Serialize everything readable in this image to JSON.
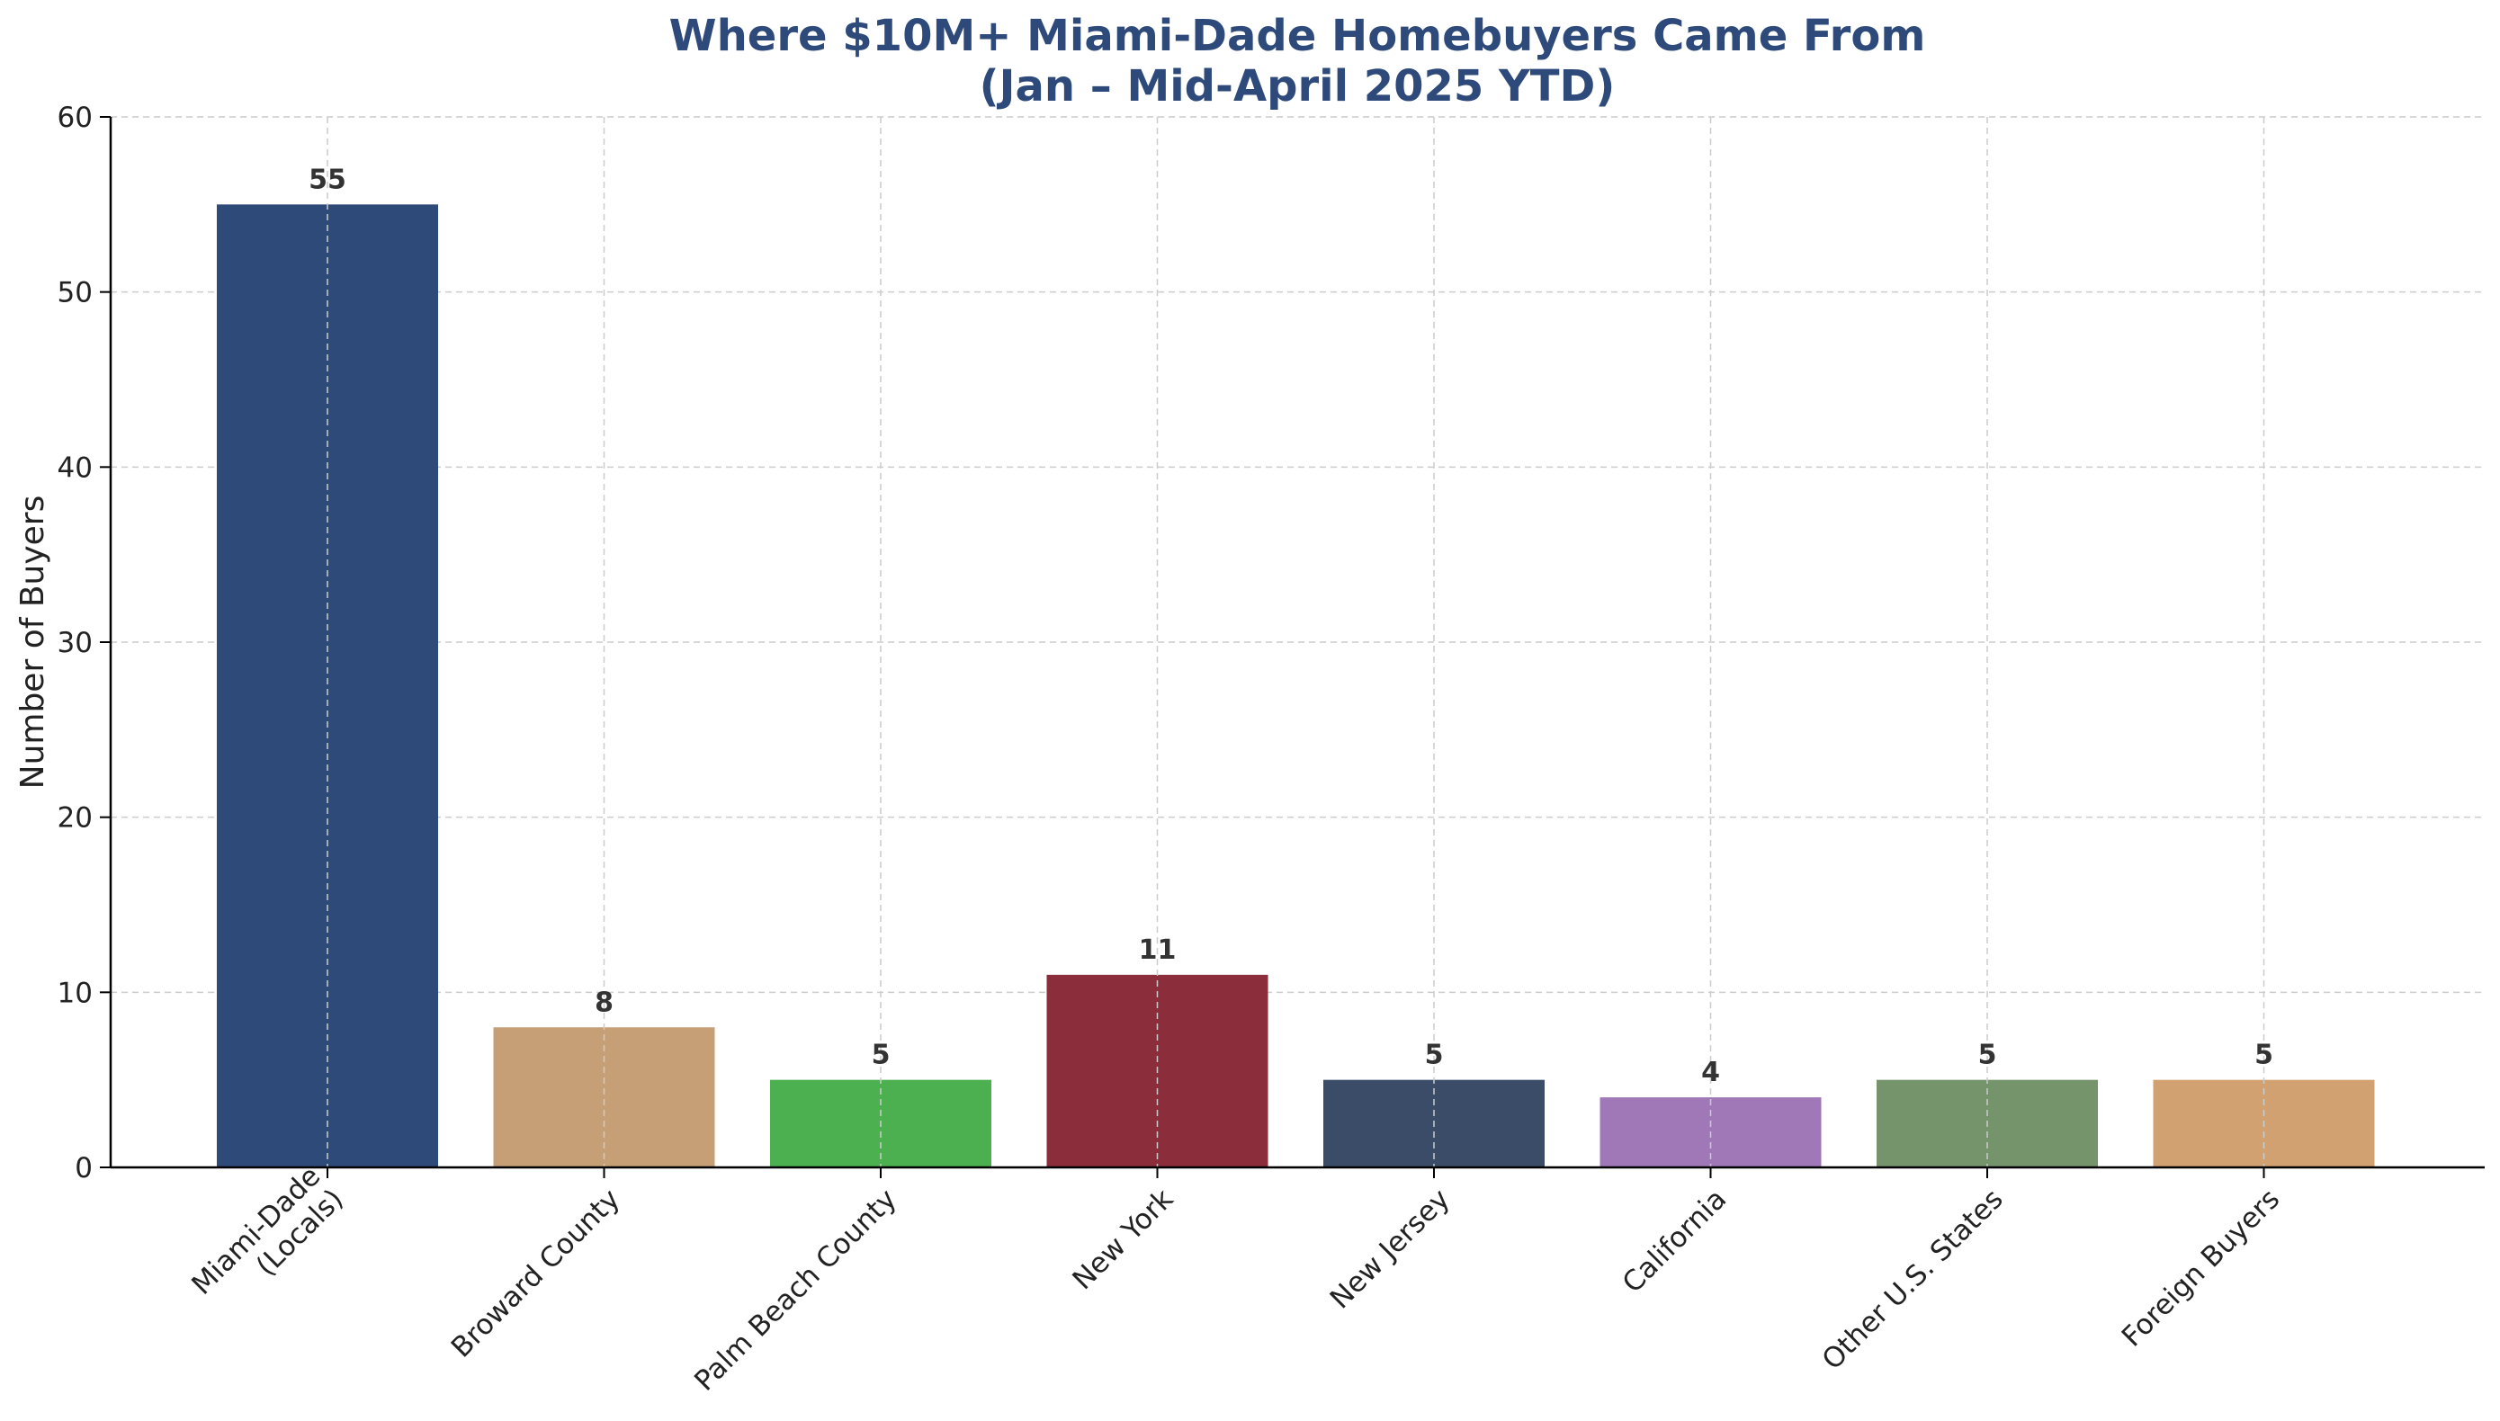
{
  "chart_data": {
    "type": "bar",
    "title_line1": "Where $10M+ Miami-Dade Homebuyers Came From",
    "title_line2": "(Jan – Mid-April 2025 YTD)",
    "xlabel": "",
    "ylabel": "Number of Buyers",
    "ylim": [
      0,
      60
    ],
    "yticks": [
      0,
      10,
      20,
      30,
      40,
      50,
      60
    ],
    "grid": true,
    "categories": [
      [
        "Miami-Dade",
        "(Locals)"
      ],
      [
        "Broward County"
      ],
      [
        "Palm Beach County"
      ],
      [
        "New York"
      ],
      [
        "New Jersey"
      ],
      [
        "California"
      ],
      [
        "Other U.S. States"
      ],
      [
        "Foreign Buyers"
      ]
    ],
    "values": [
      55,
      8,
      5,
      11,
      5,
      4,
      5,
      5
    ],
    "colors": [
      "#2e4a78",
      "#c69f77",
      "#4caf50",
      "#8c2d3c",
      "#3a4c68",
      "#a078b8",
      "#76946b",
      "#d2a172"
    ]
  }
}
